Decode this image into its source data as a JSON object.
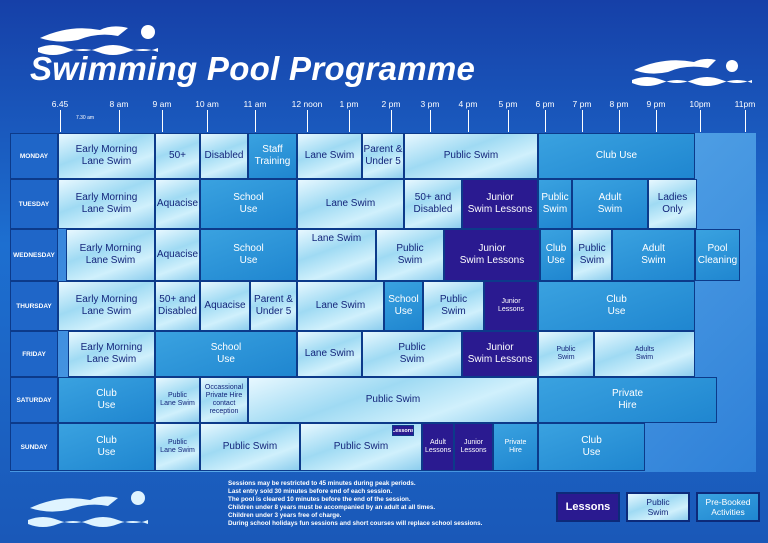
{
  "header": {
    "title": "Swimming Pool Programme"
  },
  "times": [
    "6.45",
    "7.30 am",
    "8 am",
    "9 am",
    "10 am",
    "11 am",
    "12 noon",
    "1 pm",
    "2 pm",
    "3 pm",
    "4 pm",
    "5 pm",
    "6 pm",
    "7 pm",
    "8 pm",
    "9 pm",
    "10pm",
    "11pm"
  ],
  "days": [
    {
      "name": "MONDAY",
      "sessions": [
        {
          "lines": [
            "Early Morning",
            "Lane Swim"
          ]
        },
        {
          "lines": [
            "50+"
          ]
        },
        {
          "lines": [
            "Disabled"
          ]
        },
        {
          "lines": [
            "Staff",
            "Training"
          ]
        },
        {
          "lines": [
            "Lane Swim"
          ]
        },
        {
          "lines": [
            "Parent &",
            "Under 5"
          ]
        },
        {
          "lines": [
            "Public Swim"
          ]
        },
        {
          "lines": [
            "Club Use"
          ]
        }
      ]
    },
    {
      "name": "TUESDAY",
      "sessions": [
        {
          "lines": [
            "Early Morning",
            "Lane Swim"
          ]
        },
        {
          "lines": [
            "Aquacise"
          ]
        },
        {
          "lines": [
            "School",
            "Use"
          ]
        },
        {
          "lines": [
            "Lane Swim"
          ]
        },
        {
          "lines": [
            "50+ and",
            "Disabled"
          ]
        },
        {
          "lines": [
            "Junior",
            "Swim Lessons"
          ]
        },
        {
          "lines": [
            "Public",
            "Swim"
          ]
        },
        {
          "lines": [
            "Adult",
            "Swim"
          ]
        },
        {
          "lines": [
            "Ladies",
            "Only"
          ]
        }
      ]
    },
    {
      "name": "WEDNESDAY",
      "sessions": [
        {
          "lines": [
            "Early Morning",
            "Lane Swim"
          ]
        },
        {
          "lines": [
            "Aquacise"
          ]
        },
        {
          "lines": [
            "School",
            "Use"
          ]
        },
        {
          "lines": [
            "Lane Swim"
          ]
        },
        {
          "lines": [
            "Public",
            "Swim"
          ]
        },
        {
          "lines": [
            "Junior",
            "Swim Lessons"
          ]
        },
        {
          "lines": [
            "Club",
            "Use"
          ]
        },
        {
          "lines": [
            "Public",
            "Swim"
          ]
        },
        {
          "lines": [
            "Adult",
            "Swim"
          ]
        },
        {
          "lines": [
            "Pool",
            "Cleaning"
          ]
        }
      ]
    },
    {
      "name": "THURSDAY",
      "sessions": [
        {
          "lines": [
            "Early Morning",
            "Lane Swim"
          ]
        },
        {
          "lines": [
            "50+ and",
            "Disabled"
          ]
        },
        {
          "lines": [
            "Aquacise"
          ]
        },
        {
          "lines": [
            "Parent &",
            "Under 5"
          ]
        },
        {
          "lines": [
            "Lane Swim"
          ]
        },
        {
          "lines": [
            "School",
            "Use"
          ]
        },
        {
          "lines": [
            "Public",
            "Swim"
          ]
        },
        {
          "lines": [
            "Junior",
            "Lessons"
          ]
        },
        {
          "lines": [
            "Club",
            "Use"
          ]
        }
      ]
    },
    {
      "name": "FRIDAY",
      "sessions": [
        {
          "lines": [
            "Early Morning",
            "Lane Swim"
          ]
        },
        {
          "lines": [
            "School",
            "Use"
          ]
        },
        {
          "lines": [
            "Lane Swim"
          ]
        },
        {
          "lines": [
            "Public",
            "Swim"
          ]
        },
        {
          "lines": [
            "Junior",
            "Swim Lessons"
          ]
        },
        {
          "lines": [
            "Public",
            "Swim"
          ]
        },
        {
          "lines": [
            "Adults",
            "Swim"
          ]
        }
      ]
    },
    {
      "name": "SATURDAY",
      "sessions": [
        {
          "lines": [
            "Club",
            "Use"
          ]
        },
        {
          "lines": [
            "Public",
            "Lane Swim"
          ]
        },
        {
          "lines": [
            "Occassional",
            "Private Hire",
            "contact",
            "reception"
          ]
        },
        {
          "lines": [
            "Public Swim"
          ]
        },
        {
          "lines": [
            "Private",
            "Hire"
          ]
        }
      ]
    },
    {
      "name": "SUNDAY",
      "sessions": [
        {
          "lines": [
            "Club",
            "Use"
          ]
        },
        {
          "lines": [
            "Public",
            "Lane Swim"
          ]
        },
        {
          "lines": [
            "Public Swim"
          ]
        },
        {
          "lines": [
            "Public Swim"
          ]
        },
        {
          "lines": [
            "Adult",
            "Lessons"
          ]
        },
        {
          "lines": [
            "Junior",
            "Lessons"
          ]
        },
        {
          "lines": [
            "Private",
            "Hire"
          ]
        },
        {
          "lines": [
            "Club",
            "Use"
          ]
        }
      ]
    }
  ],
  "sunday_tag": "Lessons",
  "notes": [
    "Sessions may be restricted to 45 minutes during peak periods.",
    "Last entry sold 30 minutes before end of each session.",
    "The pool is cleared 10 minutes before the end of the session.",
    "Children under 8 years must be accompanied by an adult at all times.",
    "Children under 3 years free of charge.",
    "During school holidays fun sessions and short courses will replace school sessions."
  ],
  "legend": [
    {
      "lines": [
        "Lessons"
      ]
    },
    {
      "lines": [
        "Public",
        "Swim"
      ]
    },
    {
      "lines": [
        "Pre-Booked",
        "Activities"
      ]
    }
  ]
}
